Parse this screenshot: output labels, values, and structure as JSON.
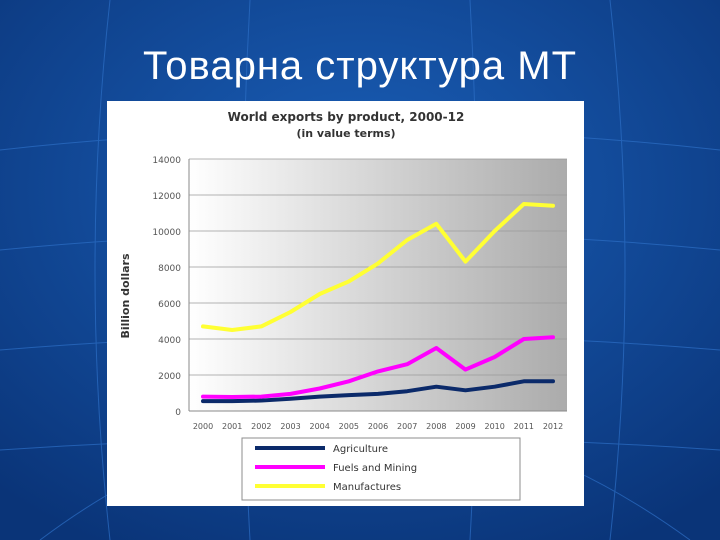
{
  "slide": {
    "title": "Товарна структура МТ"
  },
  "chart_data": {
    "type": "line",
    "title": "World exports by product, 2000-12",
    "subtitle": "(in value terms)",
    "xlabel": "",
    "ylabel": "Billion dollars",
    "ylim": [
      0,
      14000
    ],
    "yticks": [
      "0",
      "2000",
      "4000",
      "6000",
      "8000",
      "10000",
      "12000",
      "14000"
    ],
    "categories": [
      "2000",
      "2001",
      "2002",
      "2003",
      "2004",
      "2005",
      "2006",
      "2007",
      "2008",
      "2009",
      "2010",
      "2011",
      "2012"
    ],
    "series": [
      {
        "name": "Agriculture",
        "color": "#0b2a6a",
        "values": [
          550,
          550,
          580,
          680,
          800,
          880,
          950,
          1100,
          1350,
          1150,
          1350,
          1650,
          1650
        ]
      },
      {
        "name": "Fuels and Mining",
        "color": "#ff00ff",
        "values": [
          800,
          780,
          800,
          950,
          1250,
          1650,
          2200,
          2600,
          3500,
          2300,
          3000,
          4000,
          4100
        ]
      },
      {
        "name": "Manufactures",
        "color": "#ffff33",
        "values": [
          4700,
          4500,
          4700,
          5500,
          6500,
          7200,
          8200,
          9500,
          10400,
          8300,
          10000,
          11500,
          11400
        ]
      }
    ],
    "grid": true,
    "legend_position": "bottom"
  }
}
